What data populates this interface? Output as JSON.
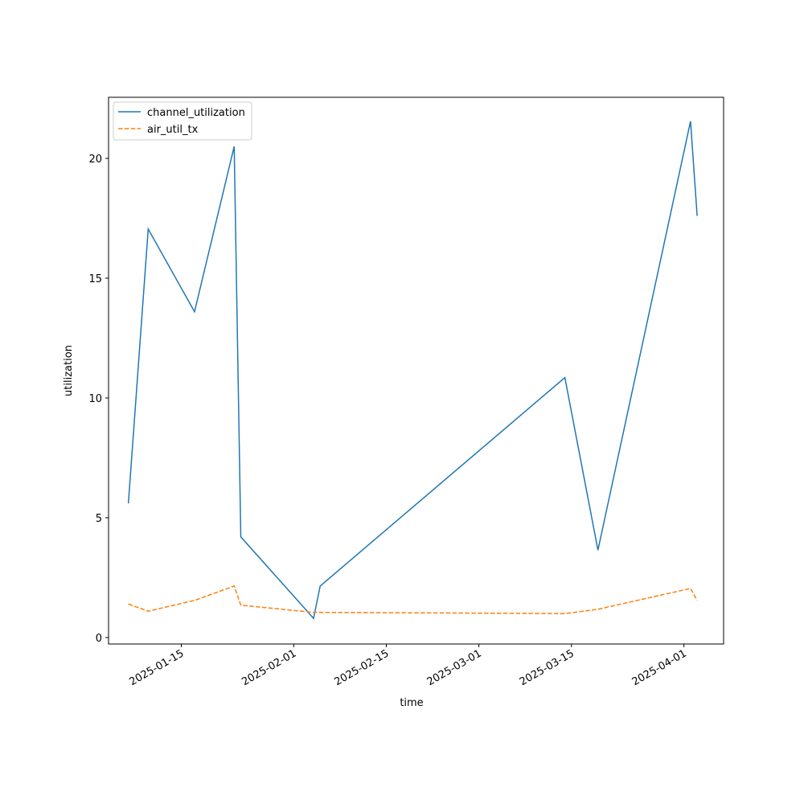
{
  "chart_data": {
    "type": "line",
    "x": [
      "2025-01-07",
      "2025-01-10",
      "2025-01-17",
      "2025-01-23",
      "2025-01-24",
      "2025-02-04",
      "2025-02-05",
      "2025-03-14",
      "2025-03-19",
      "2025-04-02",
      "2025-04-03"
    ],
    "series": [
      {
        "name": "channel_utilization",
        "color": "#1f77b4",
        "linestyle": "solid",
        "values": [
          5.6,
          17.05,
          13.6,
          20.5,
          4.2,
          0.8,
          2.15,
          10.85,
          3.65,
          21.55,
          17.6
        ]
      },
      {
        "name": "air_util_tx",
        "color": "#ff7f0e",
        "linestyle": "dashed",
        "values": [
          1.4,
          1.1,
          1.55,
          2.15,
          1.35,
          1.05,
          1.05,
          1.0,
          1.18,
          2.05,
          1.55
        ]
      }
    ],
    "xlabel": "time",
    "ylabel": "utilization",
    "xlim": [
      "2025-01-04",
      "2025-04-07"
    ],
    "xticks": [
      "2025-01-15",
      "2025-02-01",
      "2025-02-15",
      "2025-03-01",
      "2025-03-15",
      "2025-04-01"
    ],
    "ylim": [
      -0.27,
      22.55
    ],
    "yticks": [
      0,
      5,
      10,
      15,
      20
    ],
    "legend": "upper left",
    "grid": false
  }
}
